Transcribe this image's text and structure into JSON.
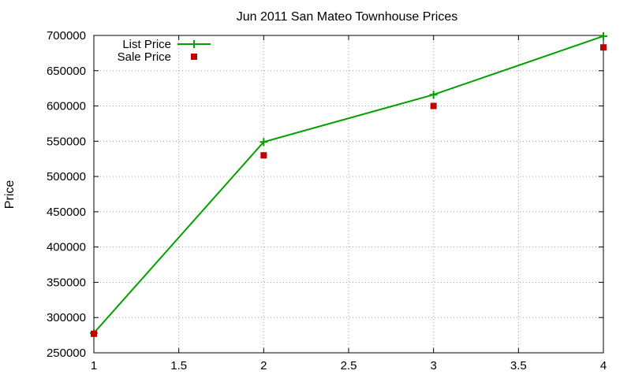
{
  "chart_data": {
    "type": "line",
    "title": "Jun 2011 San Mateo Townhouse Prices",
    "xlabel": "",
    "ylabel": "Price",
    "xlim": [
      1,
      4
    ],
    "ylim": [
      250000,
      700000
    ],
    "xticks": [
      "1",
      "1.5",
      "2",
      "2.5",
      "3",
      "3.5",
      "4"
    ],
    "yticks": [
      "250000",
      "300000",
      "350000",
      "400000",
      "450000",
      "500000",
      "550000",
      "600000",
      "650000",
      "700000"
    ],
    "grid": true,
    "legend_position": "top-left",
    "series": [
      {
        "name": "List Price",
        "style": "linespoints",
        "marker": "plus",
        "color": "#00a000",
        "x": [
          1,
          2,
          3,
          4
        ],
        "y": [
          278000,
          549000,
          616000,
          699000
        ]
      },
      {
        "name": "Sale Price",
        "style": "points",
        "marker": "square",
        "color": "#c00000",
        "x": [
          1,
          2,
          3,
          4
        ],
        "y": [
          277000,
          530000,
          600000,
          683000
        ]
      }
    ]
  }
}
